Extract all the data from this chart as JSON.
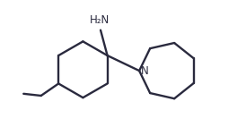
{
  "background_color": "#ffffff",
  "line_color": "#2a2a3e",
  "line_width": 1.7,
  "text_color": "#2a2a3e",
  "nh2_label": "H₂N",
  "n_label": "N",
  "fig_width": 2.74,
  "fig_height": 1.42,
  "dpi": 100,
  "xlim": [
    0.0,
    9.0
  ],
  "ylim": [
    0.0,
    5.2
  ]
}
